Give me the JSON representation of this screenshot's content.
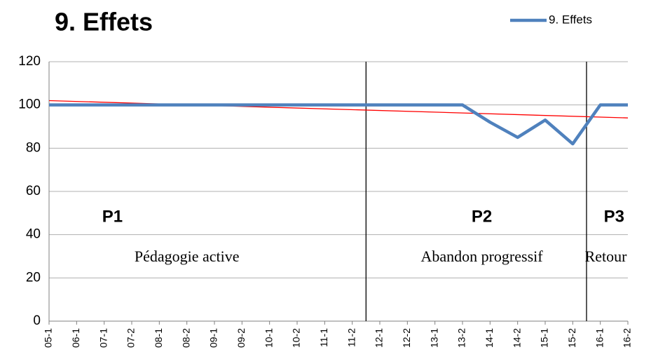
{
  "chart_data": {
    "type": "line",
    "title": "9. Effets",
    "categories": [
      "05-1",
      "06-1",
      "07-1",
      "07-2",
      "08-1",
      "08-2",
      "09-1",
      "09-2",
      "10-1",
      "10-2",
      "11-1",
      "11-2",
      "12-1",
      "12-2",
      "13-1",
      "13-2",
      "14-1",
      "14-2",
      "15-1",
      "15-2",
      "16-1",
      "16-2"
    ],
    "series": [
      {
        "name": "9. Effets",
        "color": "#4f81bd",
        "values": [
          100,
          100,
          100,
          100,
          100,
          100,
          100,
          100,
          100,
          100,
          100,
          100,
          100,
          100,
          100,
          100,
          92,
          85,
          93,
          82,
          100,
          100
        ]
      }
    ],
    "trendline": {
      "color": "#ff0000",
      "values": [
        102,
        94
      ]
    },
    "ylim": [
      0,
      120
    ],
    "yticks": [
      0,
      20,
      40,
      60,
      80,
      100,
      120
    ],
    "grid": true,
    "legend": "top-right",
    "phases": [
      {
        "label": "P1",
        "description": "Pédagogie active"
      },
      {
        "label": "P2",
        "description": "Abandon progressif"
      },
      {
        "label": "P3",
        "description": "Retour"
      }
    ]
  }
}
